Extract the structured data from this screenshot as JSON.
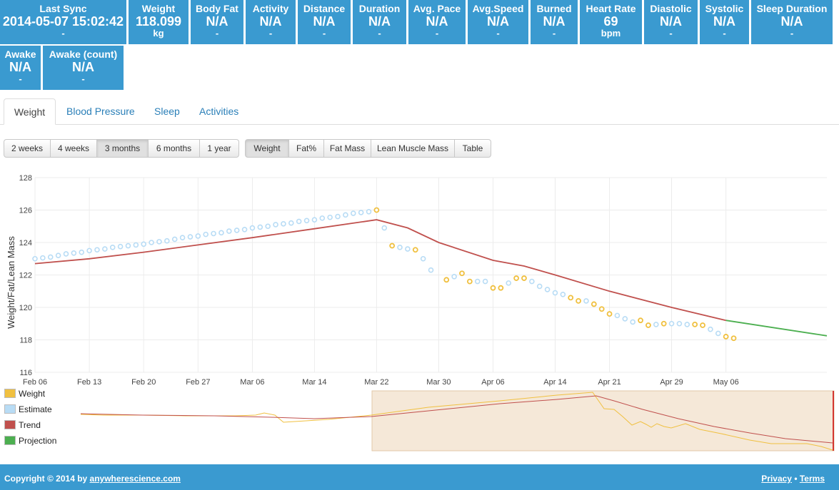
{
  "stats": [
    {
      "label": "Last Sync",
      "value": "2014-05-07 15:02:42",
      "unit": "-"
    },
    {
      "label": "Weight",
      "value": "118.099",
      "unit": "kg"
    },
    {
      "label": "Body Fat",
      "value": "N/A",
      "unit": "-"
    },
    {
      "label": "Activity",
      "value": "N/A",
      "unit": "-"
    },
    {
      "label": "Distance",
      "value": "N/A",
      "unit": "-"
    },
    {
      "label": "Duration",
      "value": "N/A",
      "unit": "-"
    },
    {
      "label": "Avg. Pace",
      "value": "N/A",
      "unit": "-"
    },
    {
      "label": "Avg.Speed",
      "value": "N/A",
      "unit": "-"
    },
    {
      "label": "Burned",
      "value": "N/A",
      "unit": "-"
    },
    {
      "label": "Heart Rate",
      "value": "69",
      "unit": "bpm"
    },
    {
      "label": "Diastolic",
      "value": "N/A",
      "unit": "-"
    },
    {
      "label": "Systolic",
      "value": "N/A",
      "unit": "-"
    },
    {
      "label": "Sleep Duration",
      "value": "N/A",
      "unit": "-"
    },
    {
      "label": "Awake",
      "value": "N/A",
      "unit": "-"
    },
    {
      "label": "Awake (count)",
      "value": "N/A",
      "unit": "-"
    }
  ],
  "tabs": [
    "Weight",
    "Blood Pressure",
    "Sleep",
    "Activities"
  ],
  "active_tab": "Weight",
  "range_buttons": [
    "2 weeks",
    "4 weeks",
    "3 months",
    "6 months",
    "1 year"
  ],
  "active_range": "3 months",
  "metric_buttons": [
    "Weight",
    "Fat%",
    "Fat Mass",
    "Lean Muscle Mass",
    "Table"
  ],
  "active_metric": "Weight",
  "legend": [
    {
      "label": "Weight",
      "color": "#f0c040"
    },
    {
      "label": "Estimate",
      "color": "#b8dcf5"
    },
    {
      "label": "Trend",
      "color": "#c0504d"
    },
    {
      "label": "Projection",
      "color": "#4caf50"
    }
  ],
  "footer": {
    "copyright": "Copyright © 2014 by",
    "site": "anywherescience.com",
    "privacy": "Privacy",
    "separator": "•",
    "terms": "Terms"
  },
  "chart_data": {
    "type": "scatter",
    "ylabel": "Weight/Fat/Lean Mass",
    "xlabel": "",
    "ylim": [
      116,
      128
    ],
    "yticks": [
      116,
      118,
      120,
      122,
      124,
      126,
      128
    ],
    "xrange": [
      "2014-02-06",
      "2014-05-19"
    ],
    "xticks": [
      "Feb 06",
      "Feb 13",
      "Feb 20",
      "Feb 27",
      "Mar 06",
      "Mar 14",
      "Mar 22",
      "Mar 30",
      "Apr 06",
      "Apr 14",
      "Apr 21",
      "Apr 29",
      "May 06"
    ],
    "xtick_dates": [
      "2014-02-06",
      "2014-02-13",
      "2014-02-20",
      "2014-02-27",
      "2014-03-06",
      "2014-03-14",
      "2014-03-22",
      "2014-03-30",
      "2014-04-06",
      "2014-04-14",
      "2014-04-21",
      "2014-04-29",
      "2014-05-06"
    ],
    "grid": true,
    "legend_position": "bottom-left",
    "series": [
      {
        "name": "Weight",
        "color": "#f0c040",
        "points": [
          [
            "2014-03-22",
            126.0
          ],
          [
            "2014-03-24",
            123.8
          ],
          [
            "2014-03-27",
            123.55
          ],
          [
            "2014-03-31",
            121.7
          ],
          [
            "2014-04-02",
            122.1
          ],
          [
            "2014-04-03",
            121.6
          ],
          [
            "2014-04-06",
            121.2
          ],
          [
            "2014-04-07",
            121.2
          ],
          [
            "2014-04-09",
            121.8
          ],
          [
            "2014-04-10",
            121.8
          ],
          [
            "2014-04-16",
            120.6
          ],
          [
            "2014-04-17",
            120.4
          ],
          [
            "2014-04-19",
            120.2
          ],
          [
            "2014-04-20",
            119.9
          ],
          [
            "2014-04-21",
            119.6
          ],
          [
            "2014-04-25",
            119.2
          ],
          [
            "2014-04-26",
            118.9
          ],
          [
            "2014-04-28",
            119.0
          ],
          [
            "2014-05-02",
            118.95
          ],
          [
            "2014-05-03",
            118.9
          ],
          [
            "2014-05-06",
            118.2
          ],
          [
            "2014-05-07",
            118.1
          ]
        ]
      },
      {
        "name": "Estimate",
        "color": "#b8dcf5",
        "points": [
          [
            "2014-02-06",
            123.0
          ],
          [
            "2014-02-07",
            123.05
          ],
          [
            "2014-02-08",
            123.1
          ],
          [
            "2014-02-09",
            123.2
          ],
          [
            "2014-02-10",
            123.3
          ],
          [
            "2014-02-11",
            123.35
          ],
          [
            "2014-02-12",
            123.4
          ],
          [
            "2014-02-13",
            123.5
          ],
          [
            "2014-02-14",
            123.55
          ],
          [
            "2014-02-15",
            123.6
          ],
          [
            "2014-02-16",
            123.7
          ],
          [
            "2014-02-17",
            123.75
          ],
          [
            "2014-02-18",
            123.8
          ],
          [
            "2014-02-19",
            123.85
          ],
          [
            "2014-02-20",
            123.9
          ],
          [
            "2014-02-21",
            124.0
          ],
          [
            "2014-02-22",
            124.05
          ],
          [
            "2014-02-23",
            124.1
          ],
          [
            "2014-02-24",
            124.2
          ],
          [
            "2014-02-25",
            124.3
          ],
          [
            "2014-02-26",
            124.35
          ],
          [
            "2014-02-27",
            124.4
          ],
          [
            "2014-02-28",
            124.5
          ],
          [
            "2014-03-01",
            124.55
          ],
          [
            "2014-03-02",
            124.6
          ],
          [
            "2014-03-03",
            124.7
          ],
          [
            "2014-03-04",
            124.75
          ],
          [
            "2014-03-05",
            124.8
          ],
          [
            "2014-03-06",
            124.9
          ],
          [
            "2014-03-07",
            124.95
          ],
          [
            "2014-03-08",
            125.0
          ],
          [
            "2014-03-09",
            125.1
          ],
          [
            "2014-03-10",
            125.15
          ],
          [
            "2014-03-11",
            125.2
          ],
          [
            "2014-03-12",
            125.3
          ],
          [
            "2014-03-13",
            125.35
          ],
          [
            "2014-03-14",
            125.4
          ],
          [
            "2014-03-15",
            125.5
          ],
          [
            "2014-03-16",
            125.55
          ],
          [
            "2014-03-17",
            125.6
          ],
          [
            "2014-03-18",
            125.7
          ],
          [
            "2014-03-19",
            125.8
          ],
          [
            "2014-03-20",
            125.85
          ],
          [
            "2014-03-21",
            125.9
          ],
          [
            "2014-03-23",
            124.9
          ],
          [
            "2014-03-25",
            123.7
          ],
          [
            "2014-03-26",
            123.6
          ],
          [
            "2014-03-28",
            123.0
          ],
          [
            "2014-03-29",
            122.3
          ],
          [
            "2014-04-01",
            121.9
          ],
          [
            "2014-04-04",
            121.6
          ],
          [
            "2014-04-05",
            121.6
          ],
          [
            "2014-04-08",
            121.5
          ],
          [
            "2014-04-11",
            121.6
          ],
          [
            "2014-04-12",
            121.3
          ],
          [
            "2014-04-13",
            121.1
          ],
          [
            "2014-04-14",
            120.9
          ],
          [
            "2014-04-15",
            120.8
          ],
          [
            "2014-04-18",
            120.4
          ],
          [
            "2014-04-22",
            119.5
          ],
          [
            "2014-04-23",
            119.3
          ],
          [
            "2014-04-24",
            119.1
          ],
          [
            "2014-04-27",
            118.95
          ],
          [
            "2014-04-29",
            119.0
          ],
          [
            "2014-04-30",
            119.0
          ],
          [
            "2014-05-01",
            118.95
          ],
          [
            "2014-05-04",
            118.65
          ],
          [
            "2014-05-05",
            118.4
          ]
        ]
      },
      {
        "name": "Trend",
        "color": "#c0504d",
        "points": [
          [
            "2014-02-06",
            122.7
          ],
          [
            "2014-02-13",
            123.0
          ],
          [
            "2014-02-20",
            123.4
          ],
          [
            "2014-02-27",
            123.85
          ],
          [
            "2014-03-06",
            124.3
          ],
          [
            "2014-03-14",
            124.85
          ],
          [
            "2014-03-22",
            125.4
          ],
          [
            "2014-03-26",
            124.9
          ],
          [
            "2014-03-30",
            124.0
          ],
          [
            "2014-04-06",
            122.9
          ],
          [
            "2014-04-10",
            122.55
          ],
          [
            "2014-04-14",
            122.0
          ],
          [
            "2014-04-21",
            121.0
          ],
          [
            "2014-04-29",
            120.0
          ],
          [
            "2014-05-06",
            119.2
          ]
        ]
      },
      {
        "name": "Projection",
        "color": "#4caf50",
        "points": [
          [
            "2014-05-06",
            119.2
          ],
          [
            "2014-05-19",
            118.25
          ]
        ]
      }
    ]
  }
}
